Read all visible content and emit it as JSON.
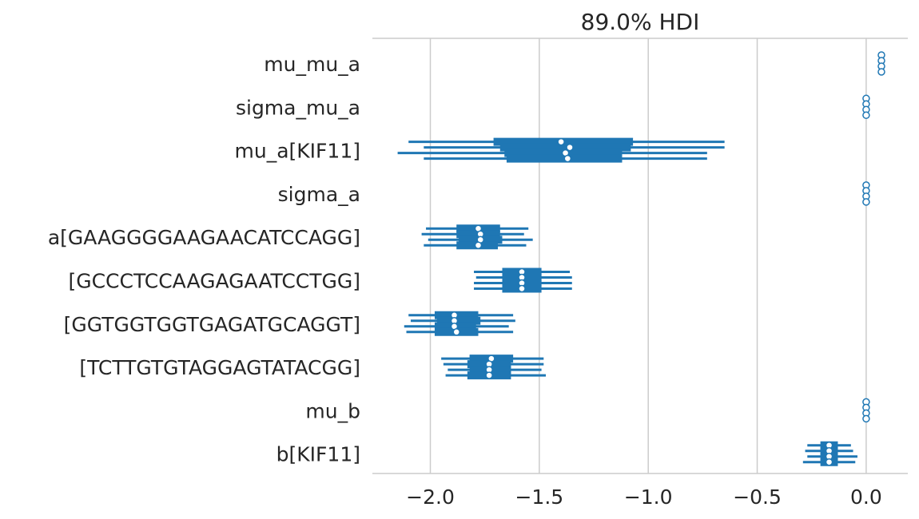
{
  "chart_data": {
    "type": "forest",
    "title": "89.0% HDI",
    "xlim": [
      -2.27,
      0.2
    ],
    "xticks": [
      -2.0,
      -1.5,
      -1.0,
      -0.5,
      0.0
    ],
    "xtick_labels": [
      "−2.0",
      "−1.5",
      "−1.0",
      "−0.5",
      "0.0"
    ],
    "grid": "vertical",
    "color": "#1f77b4",
    "parameters": [
      {
        "label": "mu_mu_a",
        "chains": [
          {
            "median": 0.07,
            "hdi_89": [
              0.07,
              0.07
            ],
            "iqr": [
              0.07,
              0.07
            ]
          },
          {
            "median": 0.07,
            "hdi_89": [
              0.07,
              0.07
            ],
            "iqr": [
              0.07,
              0.07
            ]
          },
          {
            "median": 0.07,
            "hdi_89": [
              0.07,
              0.07
            ],
            "iqr": [
              0.07,
              0.07
            ]
          },
          {
            "median": 0.07,
            "hdi_89": [
              0.07,
              0.07
            ],
            "iqr": [
              0.07,
              0.07
            ]
          }
        ]
      },
      {
        "label": "sigma_mu_a",
        "chains": [
          {
            "median": 0.0,
            "hdi_89": [
              0.0,
              0.0
            ],
            "iqr": [
              0.0,
              0.0
            ]
          },
          {
            "median": 0.0,
            "hdi_89": [
              0.0,
              0.0
            ],
            "iqr": [
              0.0,
              0.0
            ]
          },
          {
            "median": 0.0,
            "hdi_89": [
              0.0,
              0.0
            ],
            "iqr": [
              0.0,
              0.0
            ]
          },
          {
            "median": 0.0,
            "hdi_89": [
              0.0,
              0.0
            ],
            "iqr": [
              0.0,
              0.0
            ]
          }
        ]
      },
      {
        "label": "mu_a[KIF11]",
        "chains": [
          {
            "median": -1.4,
            "hdi_89": [
              -2.1,
              -0.65
            ],
            "iqr": [
              -1.71,
              -1.07
            ]
          },
          {
            "median": -1.36,
            "hdi_89": [
              -2.03,
              -0.65
            ],
            "iqr": [
              -1.68,
              -1.08
            ]
          },
          {
            "median": -1.38,
            "hdi_89": [
              -2.15,
              -0.73
            ],
            "iqr": [
              -1.66,
              -1.12
            ]
          },
          {
            "median": -1.37,
            "hdi_89": [
              -2.03,
              -0.73
            ],
            "iqr": [
              -1.65,
              -1.12
            ]
          }
        ]
      },
      {
        "label": "sigma_a",
        "chains": [
          {
            "median": 0.0,
            "hdi_89": [
              0.0,
              0.0
            ],
            "iqr": [
              0.0,
              0.0
            ]
          },
          {
            "median": 0.0,
            "hdi_89": [
              0.0,
              0.0
            ],
            "iqr": [
              0.0,
              0.0
            ]
          },
          {
            "median": 0.0,
            "hdi_89": [
              0.0,
              0.0
            ],
            "iqr": [
              0.0,
              0.0
            ]
          },
          {
            "median": 0.0,
            "hdi_89": [
              0.0,
              0.0
            ],
            "iqr": [
              0.0,
              0.0
            ]
          }
        ]
      },
      {
        "label": "a[GAAGGGGAAGAACATCCAGG]",
        "chains": [
          {
            "median": -1.78,
            "hdi_89": [
              -2.02,
              -1.55
            ],
            "iqr": [
              -1.88,
              -1.68
            ]
          },
          {
            "median": -1.77,
            "hdi_89": [
              -2.04,
              -1.57
            ],
            "iqr": [
              -1.88,
              -1.68
            ]
          },
          {
            "median": -1.77,
            "hdi_89": [
              -2.01,
              -1.53
            ],
            "iqr": [
              -1.87,
              -1.67
            ]
          },
          {
            "median": -1.78,
            "hdi_89": [
              -2.03,
              -1.56
            ],
            "iqr": [
              -1.88,
              -1.69
            ]
          }
        ]
      },
      {
        "label": "[GCCCTCCAAGAGAATCCTGG]",
        "chains": [
          {
            "median": -1.58,
            "hdi_89": [
              -1.8,
              -1.36
            ],
            "iqr": [
              -1.67,
              -1.49
            ]
          },
          {
            "median": -1.58,
            "hdi_89": [
              -1.79,
              -1.35
            ],
            "iqr": [
              -1.67,
              -1.49
            ]
          },
          {
            "median": -1.58,
            "hdi_89": [
              -1.8,
              -1.35
            ],
            "iqr": [
              -1.67,
              -1.49
            ]
          },
          {
            "median": -1.58,
            "hdi_89": [
              -1.8,
              -1.35
            ],
            "iqr": [
              -1.67,
              -1.49
            ]
          }
        ]
      },
      {
        "label": "[GGTGGTGGTGAGATGCAGGT]",
        "chains": [
          {
            "median": -1.89,
            "hdi_89": [
              -2.1,
              -1.62
            ],
            "iqr": [
              -1.98,
              -1.78
            ]
          },
          {
            "median": -1.89,
            "hdi_89": [
              -2.09,
              -1.61
            ],
            "iqr": [
              -1.97,
              -1.77
            ]
          },
          {
            "median": -1.89,
            "hdi_89": [
              -2.12,
              -1.64
            ],
            "iqr": [
              -1.98,
              -1.79
            ]
          },
          {
            "median": -1.88,
            "hdi_89": [
              -2.11,
              -1.62
            ],
            "iqr": [
              -1.98,
              -1.78
            ]
          }
        ]
      },
      {
        "label": "[TCTTGTGTAGGAGTATACGG]",
        "chains": [
          {
            "median": -1.72,
            "hdi_89": [
              -1.95,
              -1.48
            ],
            "iqr": [
              -1.82,
              -1.62
            ]
          },
          {
            "median": -1.73,
            "hdi_89": [
              -1.94,
              -1.48
            ],
            "iqr": [
              -1.83,
              -1.63
            ]
          },
          {
            "median": -1.73,
            "hdi_89": [
              -1.92,
              -1.49
            ],
            "iqr": [
              -1.82,
              -1.63
            ]
          },
          {
            "median": -1.73,
            "hdi_89": [
              -1.93,
              -1.47
            ],
            "iqr": [
              -1.83,
              -1.63
            ]
          }
        ]
      },
      {
        "label": "mu_b",
        "chains": [
          {
            "median": 0.0,
            "hdi_89": [
              0.0,
              0.0
            ],
            "iqr": [
              0.0,
              0.0
            ]
          },
          {
            "median": 0.0,
            "hdi_89": [
              0.0,
              0.0
            ],
            "iqr": [
              0.0,
              0.0
            ]
          },
          {
            "median": 0.0,
            "hdi_89": [
              0.0,
              0.0
            ],
            "iqr": [
              0.0,
              0.0
            ]
          },
          {
            "median": 0.0,
            "hdi_89": [
              0.0,
              0.0
            ],
            "iqr": [
              0.0,
              0.0
            ]
          }
        ]
      },
      {
        "label": "b[KIF11]",
        "chains": [
          {
            "median": -0.17,
            "hdi_89": [
              -0.27,
              -0.07
            ],
            "iqr": [
              -0.21,
              -0.13
            ]
          },
          {
            "median": -0.17,
            "hdi_89": [
              -0.28,
              -0.06
            ],
            "iqr": [
              -0.21,
              -0.13
            ]
          },
          {
            "median": -0.17,
            "hdi_89": [
              -0.27,
              -0.04
            ],
            "iqr": [
              -0.21,
              -0.13
            ]
          },
          {
            "median": -0.17,
            "hdi_89": [
              -0.29,
              -0.05
            ],
            "iqr": [
              -0.21,
              -0.13
            ]
          }
        ]
      }
    ]
  }
}
